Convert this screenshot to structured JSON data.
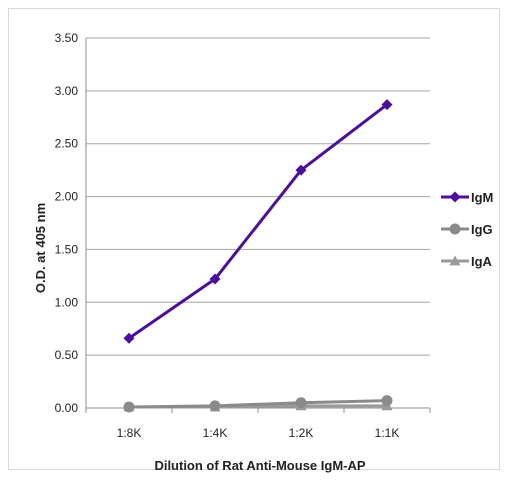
{
  "chart_data": {
    "type": "line",
    "title": "",
    "xlabel": "Dilution of Rat Anti-Mouse IgM-AP",
    "ylabel": "O.D. at 405 nm",
    "categories": [
      "1:8K",
      "1:4K",
      "1:2K",
      "1:1K"
    ],
    "ylim": [
      0,
      3.5
    ],
    "yticks": [
      "0.00",
      "0.50",
      "1.00",
      "1.50",
      "2.00",
      "2.50",
      "3.00",
      "3.50"
    ],
    "grid": true,
    "legend_position": "right",
    "series": [
      {
        "name": "IgM",
        "values": [
          0.66,
          1.22,
          2.25,
          2.87
        ],
        "color": "#4b0fa0",
        "marker": "diamond"
      },
      {
        "name": "IgG",
        "values": [
          0.01,
          0.02,
          0.05,
          0.07
        ],
        "color": "#8a8a8a",
        "marker": "circle"
      },
      {
        "name": "IgA",
        "values": [
          0.01,
          0.01,
          0.02,
          0.02
        ],
        "color": "#9a9a9a",
        "marker": "triangle"
      }
    ]
  }
}
